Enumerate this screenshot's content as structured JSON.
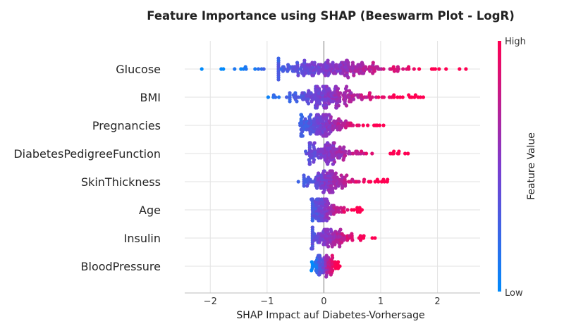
{
  "chart_data": {
    "type": "scatter",
    "title": "Feature Importance using SHAP (Beeswarm Plot - LogR)",
    "xlabel": "SHAP Impact auf Diabetes-Vorhersage",
    "xlim": [
      -2.45,
      2.75
    ],
    "xticks": [
      -2,
      -1,
      0,
      1,
      2
    ],
    "xtick_labels": [
      "−2",
      "−1",
      "0",
      "1",
      "2"
    ],
    "grid": "horizontal and vertical",
    "colorbar": {
      "label": "Feature Value",
      "high_label": "High",
      "low_label": "Low",
      "low_color": "#008afb",
      "mid_color": "#7c3ccf",
      "high_color": "#ff0052"
    },
    "features": [
      {
        "name": "Glucose",
        "min": -2.15,
        "max": 2.5,
        "core": [
          -0.8,
          1.3
        ],
        "peak": 0.0,
        "density": 1.0
      },
      {
        "name": "BMI",
        "min": -0.98,
        "max": 1.75,
        "core": [
          -0.6,
          0.8
        ],
        "peak": 0.0,
        "density": 0.85
      },
      {
        "name": "Pregnancies",
        "min": -0.42,
        "max": 1.05,
        "core": [
          -0.4,
          0.6
        ],
        "peak": -0.2,
        "density": 0.7
      },
      {
        "name": "DiabetesPedigreeFunction",
        "min": -0.32,
        "max": 1.48,
        "core": [
          -0.25,
          0.75
        ],
        "peak": -0.1,
        "density": 0.6
      },
      {
        "name": "SkinThickness",
        "min": -0.45,
        "max": 1.12,
        "core": [
          -0.35,
          0.5
        ],
        "peak": 0.0,
        "density": 0.6
      },
      {
        "name": "Age",
        "min": -0.22,
        "max": 0.67,
        "core": [
          -0.2,
          0.45
        ],
        "peak": -0.1,
        "density": 0.55
      },
      {
        "name": "Insulin",
        "min": -0.22,
        "max": 0.9,
        "core": [
          -0.2,
          0.65
        ],
        "peak": 0.0,
        "density": 0.45
      },
      {
        "name": "BloodPressure",
        "min": -0.22,
        "max": 0.28,
        "core": [
          -0.2,
          0.25
        ],
        "peak": 0.0,
        "density": 0.35
      }
    ]
  }
}
